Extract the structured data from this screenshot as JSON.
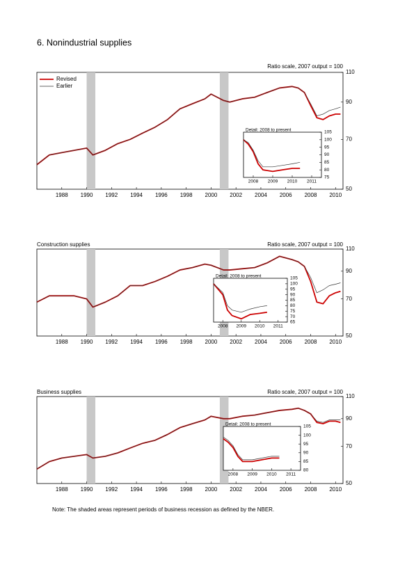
{
  "title": "6. Nonindustrial supplies",
  "note": "Note: The shaded areas represent periods of business recession as defined by the NBER.",
  "chart_data": [
    {
      "type": "line",
      "scale_note": "Ratio scale, 2007 output = 100",
      "log_scale": true,
      "legend": "upper left",
      "xlim": [
        1986.5,
        2011.1
      ],
      "ylim": [
        50,
        110
      ],
      "yticks": [
        50,
        70,
        90,
        110
      ],
      "xticks": [
        {
          "value": 1988.5,
          "label": "1988"
        },
        {
          "value": 1990.5,
          "label": "1990"
        },
        {
          "value": 1992.5,
          "label": "1992"
        },
        {
          "value": 1994.5,
          "label": "1994"
        },
        {
          "value": 1996.5,
          "label": "1996"
        },
        {
          "value": 1998.5,
          "label": "1998"
        },
        {
          "value": 2000.5,
          "label": "2000"
        },
        {
          "value": 2002.5,
          "label": "2002"
        },
        {
          "value": 2004.5,
          "label": "2004"
        },
        {
          "value": 2006.5,
          "label": "2006"
        },
        {
          "value": 2008.5,
          "label": "2008"
        },
        {
          "value": 2010.5,
          "label": "2010"
        }
      ],
      "recessions": [
        [
          1990.5,
          1991.2
        ],
        [
          2001.2,
          2001.9
        ]
      ],
      "x": [
        1986.5,
        1987.5,
        1988.5,
        1989.5,
        1990.5,
        1991,
        1992,
        1993,
        1994,
        1995,
        1996,
        1997,
        1998,
        1999,
        2000,
        2000.5,
        2001.5,
        2002,
        2003,
        2004,
        2005,
        2006,
        2007,
        2007.5,
        2008,
        2008.5,
        2009,
        2009.5,
        2010,
        2010.5,
        2010.9
      ],
      "series": [
        {
          "name": "Revised",
          "color": "#cc0000",
          "values": [
            59,
            63,
            64,
            65,
            66,
            63,
            65,
            68,
            70,
            73,
            76,
            80,
            86,
            89,
            92,
            95,
            91,
            90,
            92,
            93,
            96,
            99,
            100,
            99,
            96,
            88,
            81,
            80,
            82,
            83,
            83
          ]
        },
        {
          "name": "Earlier",
          "color": "#333333",
          "values": [
            59,
            63,
            64,
            65,
            66,
            63,
            65,
            68,
            70,
            73,
            76,
            80,
            86,
            89,
            92,
            95,
            91,
            90,
            92,
            93,
            96,
            99,
            100,
            99,
            96,
            89,
            82,
            83,
            85,
            86,
            87
          ]
        }
      ],
      "inset": {
        "title": "Detail: 2008 to present",
        "xlim": [
          2008,
          2012
        ],
        "ylim": [
          75,
          105
        ],
        "yticks": [
          75,
          80,
          85,
          90,
          95,
          100,
          105
        ],
        "xticks": [
          {
            "value": 2008.5,
            "label": "2008"
          },
          {
            "value": 2009.5,
            "label": "2009"
          },
          {
            "value": 2010.5,
            "label": "2010"
          },
          {
            "value": 2011.5,
            "label": "2011"
          }
        ],
        "x": [
          2008,
          2008.25,
          2008.5,
          2008.75,
          2009,
          2009.5,
          2010,
          2010.5,
          2010.9
        ],
        "series": [
          {
            "color": "#cc0000",
            "values": [
              100,
              97,
              92,
              84,
              80,
              79,
              80,
              81,
              81
            ]
          },
          {
            "color": "#333333",
            "values": [
              100,
              98,
              93,
              86,
              82,
              82,
              83,
              84,
              85
            ]
          }
        ]
      }
    },
    {
      "type": "line",
      "title": "Construction supplies",
      "scale_note": "Ratio scale, 2007 output = 100",
      "log_scale": true,
      "xlim": [
        1986.5,
        2011.1
      ],
      "ylim": [
        50,
        110
      ],
      "yticks": [
        50,
        70,
        90,
        110
      ],
      "xticks": [
        {
          "value": 1988.5,
          "label": "1988"
        },
        {
          "value": 1990.5,
          "label": "1990"
        },
        {
          "value": 1992.5,
          "label": "1992"
        },
        {
          "value": 1994.5,
          "label": "1994"
        },
        {
          "value": 1996.5,
          "label": "1996"
        },
        {
          "value": 1998.5,
          "label": "1998"
        },
        {
          "value": 2000.5,
          "label": "2000"
        },
        {
          "value": 2002.5,
          "label": "2002"
        },
        {
          "value": 2004.5,
          "label": "2004"
        },
        {
          "value": 2006.5,
          "label": "2006"
        },
        {
          "value": 2008.5,
          "label": "2008"
        },
        {
          "value": 2010.5,
          "label": "2010"
        }
      ],
      "recessions": [
        [
          1990.5,
          1991.2
        ],
        [
          2001.2,
          2001.9
        ]
      ],
      "x": [
        1986.5,
        1987.5,
        1988.5,
        1989.5,
        1990.5,
        1991,
        1992,
        1993,
        1994,
        1995,
        1996,
        1997,
        1998,
        1999,
        2000,
        2000.5,
        2001.5,
        2002,
        2003,
        2004,
        2005,
        2006,
        2007,
        2007.5,
        2008,
        2008.5,
        2009,
        2009.5,
        2010,
        2010.5,
        2010.9
      ],
      "series": [
        {
          "color": "#cc0000",
          "values": [
            68,
            72,
            72,
            72,
            70,
            65,
            68,
            72,
            79,
            79,
            82,
            86,
            91,
            93,
            96,
            95,
            91,
            91,
            92,
            93,
            97,
            103,
            100,
            98,
            94,
            82,
            68,
            67,
            72,
            74,
            75
          ]
        },
        {
          "color": "#333333",
          "values": [
            68,
            72,
            72,
            72,
            70,
            65,
            68,
            72,
            79,
            79,
            82,
            86,
            91,
            93,
            96,
            95,
            91,
            91,
            92,
            93,
            97,
            103,
            100,
            98,
            94,
            85,
            74,
            76,
            79,
            80,
            81
          ]
        }
      ],
      "inset": {
        "title": "Detail: 2008 to present",
        "xlim": [
          2008,
          2012
        ],
        "ylim": [
          65,
          105
        ],
        "yticks": [
          65,
          70,
          75,
          80,
          85,
          90,
          95,
          100,
          105
        ],
        "xticks": [
          {
            "value": 2008.5,
            "label": "2008"
          },
          {
            "value": 2009.5,
            "label": "2009"
          },
          {
            "value": 2010.5,
            "label": "2010"
          },
          {
            "value": 2011.5,
            "label": "2011"
          }
        ],
        "x": [
          2008,
          2008.25,
          2008.5,
          2008.75,
          2009,
          2009.5,
          2010,
          2010.5,
          2010.9
        ],
        "series": [
          {
            "color": "#cc0000",
            "values": [
              100,
              95,
              90,
              76,
              71,
              68,
              72,
              73,
              74
            ]
          },
          {
            "color": "#333333",
            "values": [
              100,
              96,
              92,
              80,
              76,
              74,
              77,
              79,
              80
            ]
          }
        ]
      }
    },
    {
      "type": "line",
      "title": "Business supplies",
      "scale_note": "Ratio scale, 2007 output = 100",
      "log_scale": true,
      "xlim": [
        1986.5,
        2011.1
      ],
      "ylim": [
        50,
        110
      ],
      "yticks": [
        50,
        70,
        90,
        110
      ],
      "xticks": [
        {
          "value": 1988.5,
          "label": "1988"
        },
        {
          "value": 1990.5,
          "label": "1990"
        },
        {
          "value": 1992.5,
          "label": "1992"
        },
        {
          "value": 1994.5,
          "label": "1994"
        },
        {
          "value": 1996.5,
          "label": "1996"
        },
        {
          "value": 1998.5,
          "label": "1998"
        },
        {
          "value": 2000.5,
          "label": "2000"
        },
        {
          "value": 2002.5,
          "label": "2002"
        },
        {
          "value": 2004.5,
          "label": "2004"
        },
        {
          "value": 2006.5,
          "label": "2006"
        },
        {
          "value": 2008.5,
          "label": "2008"
        },
        {
          "value": 2010.5,
          "label": "2010"
        }
      ],
      "recessions": [
        [
          1990.5,
          1991.2
        ],
        [
          2001.2,
          2001.9
        ]
      ],
      "x": [
        1986.5,
        1987.5,
        1988.5,
        1989.5,
        1990.5,
        1991,
        1992,
        1993,
        1994,
        1995,
        1996,
        1997,
        1998,
        1999,
        2000,
        2000.5,
        2001.5,
        2002,
        2003,
        2004,
        2005,
        2006,
        2007,
        2007.5,
        2008,
        2008.5,
        2009,
        2009.5,
        2010,
        2010.5,
        2010.9
      ],
      "series": [
        {
          "color": "#cc0000",
          "values": [
            57,
            61,
            63,
            64,
            65,
            63,
            64,
            66,
            69,
            72,
            74,
            78,
            83,
            86,
            89,
            92,
            90,
            90,
            92,
            93,
            95,
            97,
            98,
            99,
            97,
            94,
            87,
            86,
            88,
            88,
            87
          ]
        },
        {
          "color": "#333333",
          "values": [
            57,
            61,
            63,
            64,
            65,
            63,
            64,
            66,
            69,
            72,
            74,
            78,
            83,
            86,
            89,
            92,
            90,
            90,
            92,
            93,
            95,
            97,
            98,
            99,
            97,
            94,
            88,
            87,
            89,
            89,
            89
          ]
        }
      ],
      "inset": {
        "title": "Detail: 2008 to present",
        "xlim": [
          2008,
          2012
        ],
        "ylim": [
          80,
          105
        ],
        "yticks": [
          80,
          85,
          90,
          95,
          100,
          105
        ],
        "xticks": [
          {
            "value": 2008.5,
            "label": "2008"
          },
          {
            "value": 2009.5,
            "label": "2009"
          },
          {
            "value": 2010.5,
            "label": "2010"
          },
          {
            "value": 2011.5,
            "label": "2011"
          }
        ],
        "x": [
          2008,
          2008.25,
          2008.5,
          2008.75,
          2009,
          2009.5,
          2010,
          2010.5,
          2010.9
        ],
        "series": [
          {
            "color": "#cc0000",
            "values": [
              98,
              96,
              93,
              88,
              85,
              85,
              86,
              87,
              87
            ]
          },
          {
            "color": "#333333",
            "values": [
              99,
              97,
              94,
              89,
              86,
              86,
              87,
              88,
              88
            ]
          }
        ]
      }
    }
  ]
}
